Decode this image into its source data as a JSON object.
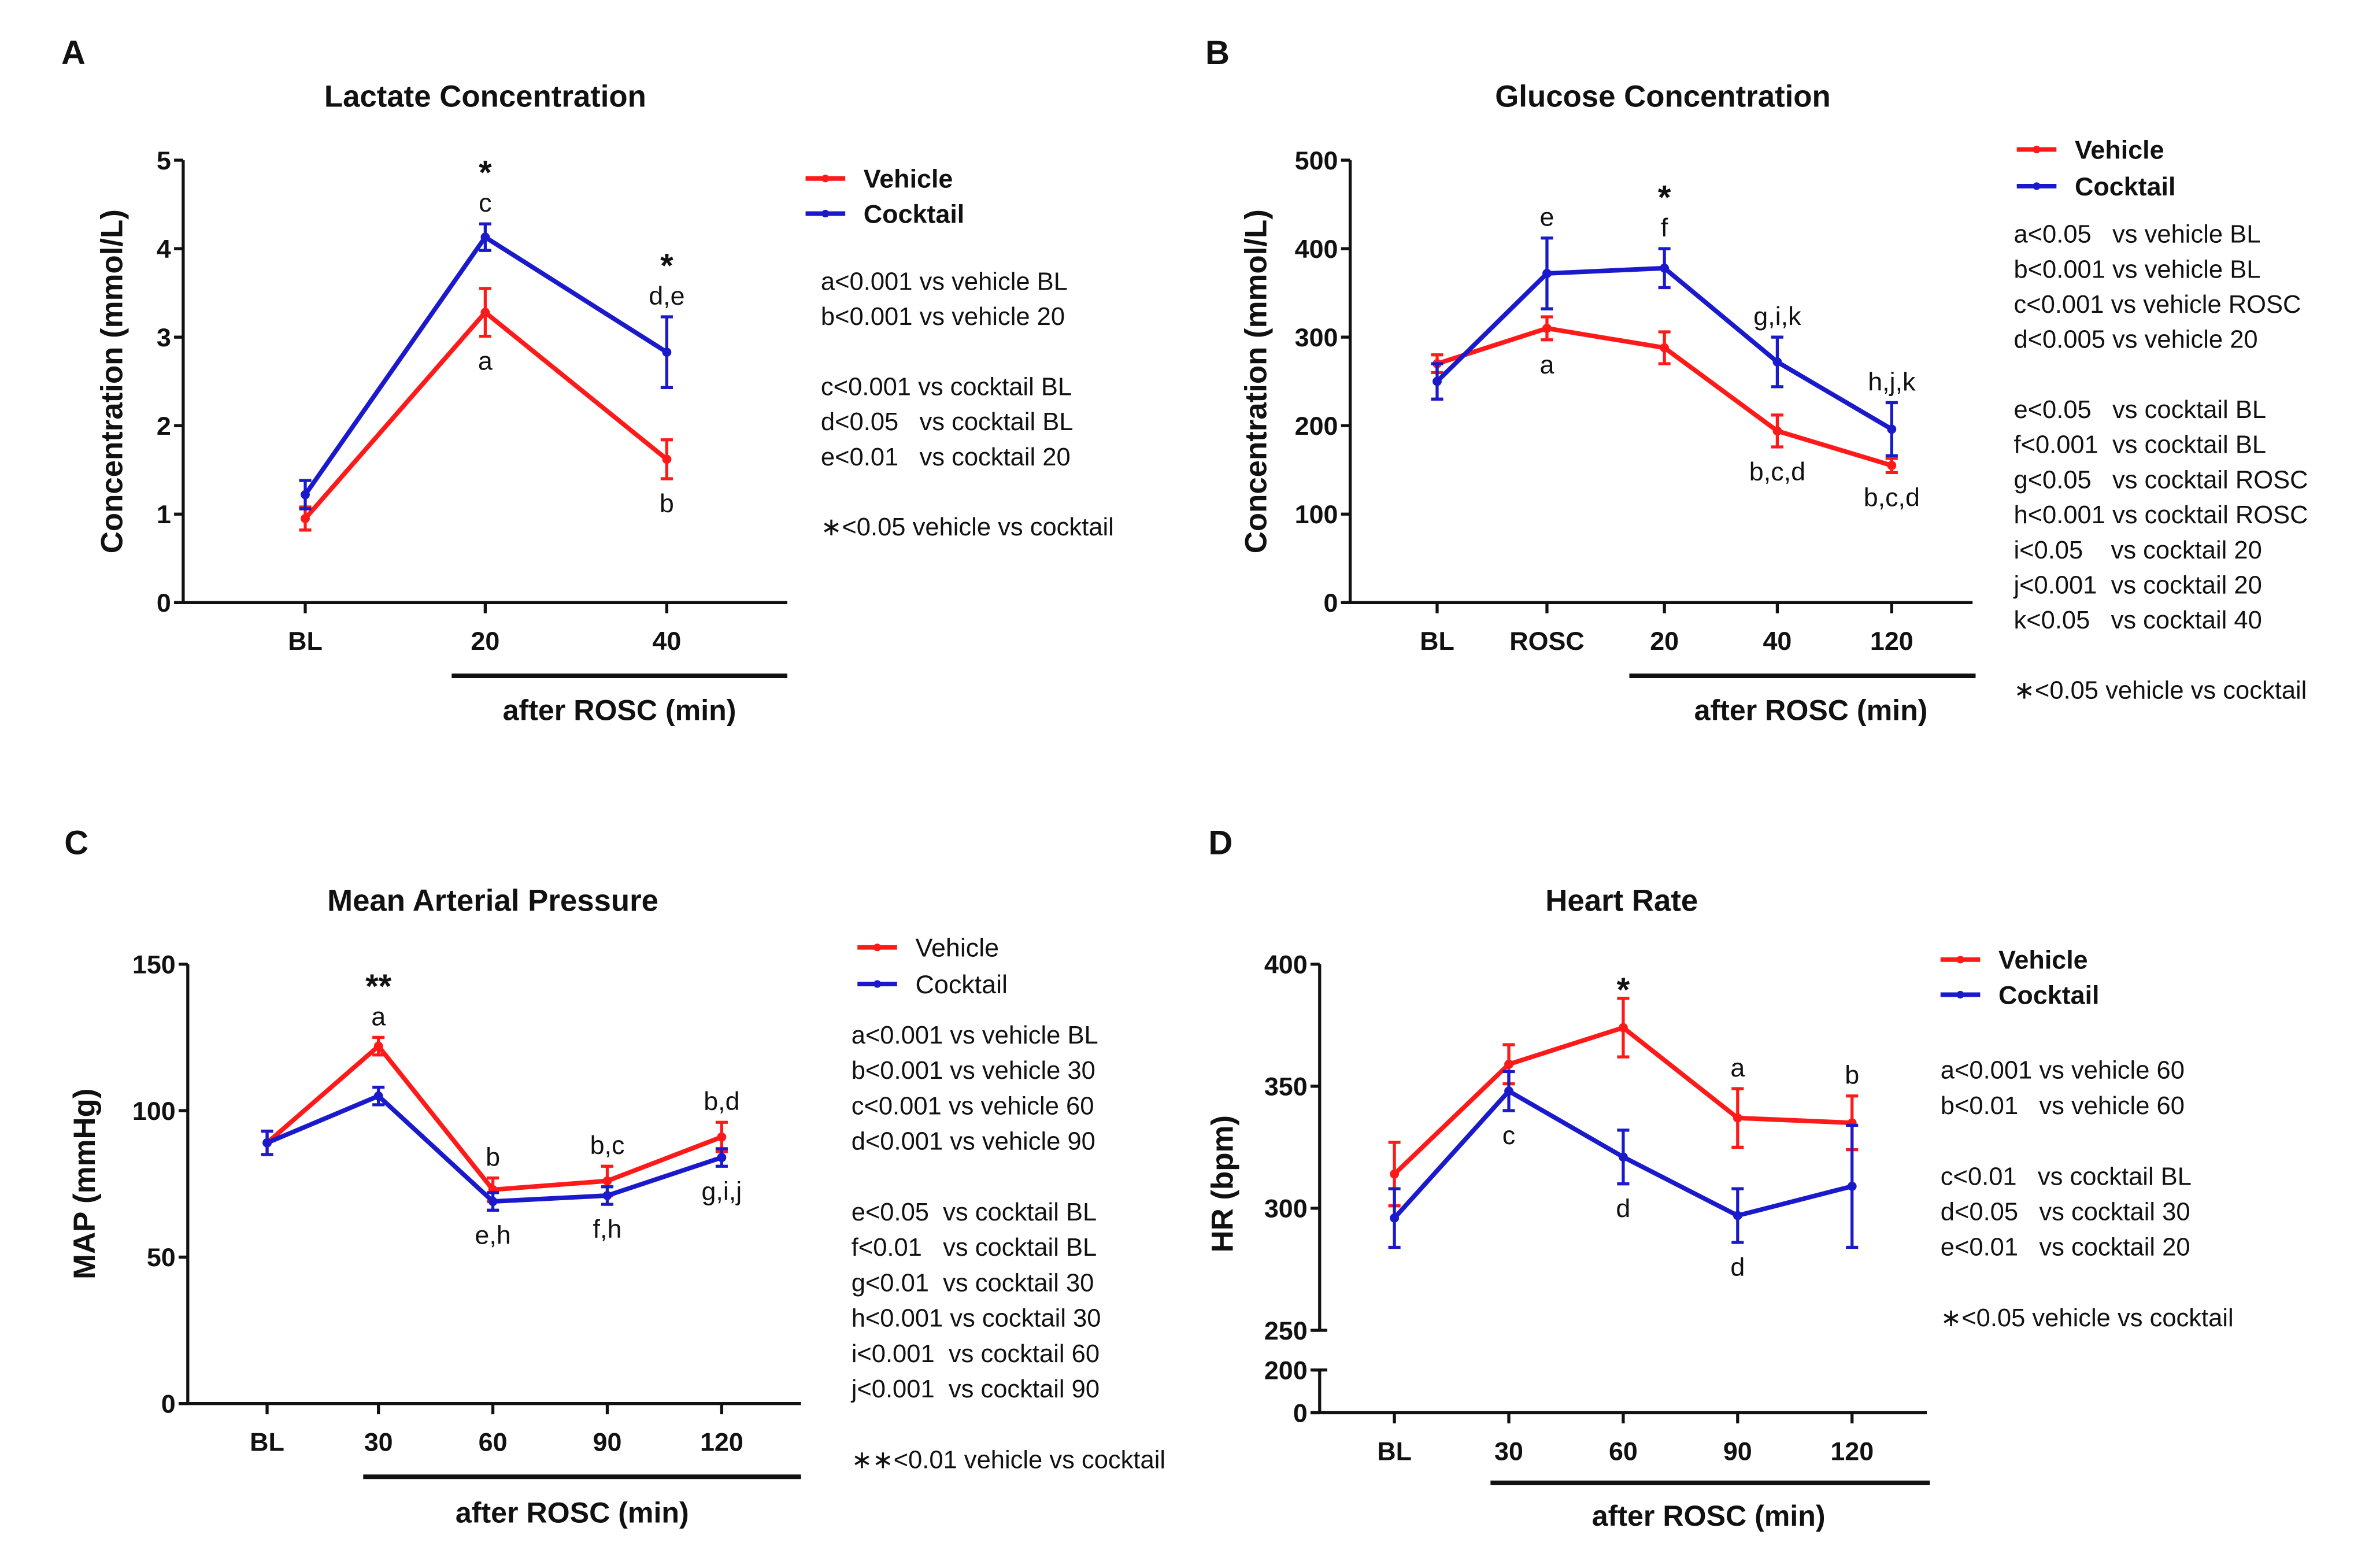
{
  "colors": {
    "vehicle": "#ff1a1a",
    "cocktail": "#1a1acc",
    "axis": "#111111"
  },
  "chart_data": [
    {
      "panel": "A",
      "type": "line",
      "title": "Lactate Concentration",
      "ylabel": "Concentration (mmol/L)",
      "xlabel": "after ROSC (min)",
      "categories": [
        "BL",
        "20",
        "40"
      ],
      "after_rosc_from_index": 1,
      "ylim": [
        0,
        5
      ],
      "yticks": [
        0,
        1,
        2,
        3,
        4,
        5
      ],
      "series": [
        {
          "name": "Vehicle",
          "color": "#ff1a1a",
          "values": [
            0.95,
            3.28,
            1.62
          ],
          "errors": [
            0.13,
            0.27,
            0.22
          ]
        },
        {
          "name": "Cocktail",
          "color": "#1a1acc",
          "values": [
            1.22,
            4.13,
            2.83
          ],
          "errors": [
            0.16,
            0.15,
            0.4
          ]
        }
      ],
      "annotations": [
        {
          "category": 1,
          "series": 1,
          "position": "above",
          "lines": [
            "*",
            "c"
          ]
        },
        {
          "category": 1,
          "series": 0,
          "position": "below",
          "lines": [
            "a"
          ]
        },
        {
          "category": 2,
          "series": 1,
          "position": "above",
          "lines": [
            "*",
            "d,e"
          ]
        },
        {
          "category": 2,
          "series": 0,
          "position": "below",
          "lines": [
            "b"
          ]
        }
      ],
      "legend_bold": true,
      "notes": [
        "a<0.001 vs vehicle BL",
        "b<0.001 vs vehicle 20",
        "",
        "c<0.001 vs cocktail BL",
        "d<0.05   vs cocktail BL",
        "e<0.01   vs cocktail 20",
        "",
        "∗<0.05 vehicle vs cocktail"
      ]
    },
    {
      "panel": "B",
      "type": "line",
      "title": "Glucose Concentration",
      "ylabel": "Concentration (mmol/L)",
      "xlabel": "after ROSC (min)",
      "categories": [
        "BL",
        "ROSC",
        "20",
        "40",
        "120"
      ],
      "after_rosc_from_index": 2,
      "ylim": [
        0,
        500
      ],
      "yticks": [
        0,
        100,
        200,
        300,
        400,
        500
      ],
      "series": [
        {
          "name": "Vehicle",
          "color": "#ff1a1a",
          "values": [
            270,
            310,
            288,
            194,
            155
          ],
          "errors": [
            10,
            13,
            18,
            18,
            8
          ]
        },
        {
          "name": "Cocktail",
          "color": "#1a1acc",
          "values": [
            250,
            372,
            378,
            272,
            196
          ],
          "errors": [
            20,
            40,
            22,
            28,
            30
          ]
        }
      ],
      "annotations": [
        {
          "category": 1,
          "series": 1,
          "position": "above",
          "lines": [
            "e"
          ]
        },
        {
          "category": 1,
          "series": 0,
          "position": "below",
          "lines": [
            "a"
          ]
        },
        {
          "category": 2,
          "series": 1,
          "position": "above",
          "lines": [
            "*",
            "f"
          ]
        },
        {
          "category": 3,
          "series": 1,
          "position": "above",
          "lines": [
            "g,i,k"
          ]
        },
        {
          "category": 3,
          "series": 0,
          "position": "below",
          "lines": [
            "b,c,d"
          ]
        },
        {
          "category": 4,
          "series": 1,
          "position": "above",
          "lines": [
            "h,j,k"
          ]
        },
        {
          "category": 4,
          "series": 0,
          "position": "below",
          "lines": [
            "b,c,d"
          ]
        }
      ],
      "legend_bold": true,
      "notes": [
        "a<0.05   vs vehicle BL",
        "b<0.001 vs vehicle BL",
        "c<0.001 vs vehicle ROSC",
        "d<0.005 vs vehicle 20",
        "",
        "e<0.05   vs cocktail BL",
        "f<0.001  vs cocktail BL",
        "g<0.05   vs cocktail ROSC",
        "h<0.001 vs cocktail ROSC",
        "i<0.05    vs cocktail 20",
        "j<0.001  vs cocktail 20",
        "k<0.05   vs cocktail 40",
        "",
        "∗<0.05 vehicle vs cocktail"
      ]
    },
    {
      "panel": "C",
      "type": "line",
      "title": "Mean Arterial Pressure",
      "ylabel": "MAP (mmHg)",
      "xlabel": "after ROSC (min)",
      "categories": [
        "BL",
        "30",
        "60",
        "90",
        "120"
      ],
      "after_rosc_from_index": 1,
      "ylim": [
        0,
        150
      ],
      "yticks": [
        0,
        50,
        100,
        150
      ],
      "series": [
        {
          "name": "Vehicle",
          "color": "#ff1a1a",
          "values": [
            89,
            122,
            73,
            76,
            91
          ],
          "errors": [
            4,
            3,
            4,
            5,
            5
          ]
        },
        {
          "name": "Cocktail",
          "color": "#1a1acc",
          "values": [
            89,
            105,
            69,
            71,
            84
          ],
          "errors": [
            4,
            3,
            3,
            3,
            3
          ]
        }
      ],
      "annotations": [
        {
          "category": 1,
          "series": 0,
          "position": "above",
          "lines": [
            "**",
            "a"
          ]
        },
        {
          "category": 2,
          "series": 0,
          "position": "above",
          "lines": [
            "b"
          ]
        },
        {
          "category": 2,
          "series": 1,
          "position": "below",
          "lines": [
            "e,h"
          ]
        },
        {
          "category": 3,
          "series": 0,
          "position": "above",
          "lines": [
            "b,c"
          ]
        },
        {
          "category": 3,
          "series": 1,
          "position": "below",
          "lines": [
            "f,h"
          ]
        },
        {
          "category": 4,
          "series": 0,
          "position": "above",
          "lines": [
            "b,d"
          ]
        },
        {
          "category": 4,
          "series": 1,
          "position": "below",
          "lines": [
            "g,i,j"
          ]
        }
      ],
      "legend_bold": false,
      "notes": [
        "a<0.001 vs vehicle BL",
        "b<0.001 vs vehicle 30",
        "c<0.001 vs vehicle 60",
        "d<0.001 vs vehicle 90",
        "",
        "e<0.05  vs cocktail BL",
        "f<0.01   vs cocktail BL",
        "g<0.01  vs cocktail 30",
        "h<0.001 vs cocktail 30",
        "i<0.001  vs cocktail 60",
        "j<0.001  vs cocktail 90",
        "",
        "∗∗<0.01 vehicle vs cocktail"
      ]
    },
    {
      "panel": "D",
      "type": "line",
      "title": "Heart Rate",
      "ylabel": "HR (bpm)",
      "xlabel": "after ROSC (min)",
      "categories": [
        "BL",
        "30",
        "60",
        "90",
        "120"
      ],
      "after_rosc_from_index": 1,
      "ylim": [
        250,
        400
      ],
      "y_broken_axis": {
        "lower_segment": [
          0,
          200
        ],
        "upper_segment": [
          250,
          400
        ]
      },
      "yticks": [
        250,
        300,
        350,
        400
      ],
      "lower_yticks": [
        0,
        200
      ],
      "series": [
        {
          "name": "Vehicle",
          "color": "#ff1a1a",
          "values": [
            314,
            359,
            374,
            337,
            335
          ],
          "errors": [
            13,
            8,
            12,
            12,
            11
          ]
        },
        {
          "name": "Cocktail",
          "color": "#1a1acc",
          "values": [
            296,
            348,
            321,
            297,
            309
          ],
          "errors": [
            12,
            8,
            11,
            11,
            25
          ]
        }
      ],
      "annotations": [
        {
          "category": 1,
          "series": 1,
          "position": "below",
          "lines": [
            "c"
          ]
        },
        {
          "category": 2,
          "series": 0,
          "position": "above",
          "lines": [
            "*"
          ]
        },
        {
          "category": 2,
          "series": 1,
          "position": "below",
          "lines": [
            "d"
          ]
        },
        {
          "category": 3,
          "series": 0,
          "position": "above",
          "lines": [
            "a"
          ]
        },
        {
          "category": 3,
          "series": 1,
          "position": "below",
          "lines": [
            "d"
          ]
        },
        {
          "category": 4,
          "series": 0,
          "position": "above",
          "lines": [
            "b"
          ]
        }
      ],
      "legend_bold": true,
      "notes": [
        "a<0.001 vs vehicle 60",
        "b<0.01   vs vehicle 60",
        "",
        "c<0.01   vs cocktail BL",
        "d<0.05   vs cocktail 30",
        "e<0.01   vs cocktail 20",
        "",
        "∗<0.05 vehicle vs cocktail"
      ]
    }
  ]
}
